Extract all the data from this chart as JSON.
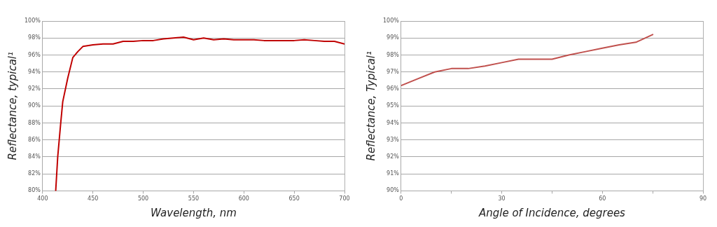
{
  "chart_data": [
    {
      "type": "line",
      "xlabel": "Wavelength, nm",
      "ylabel": "Reflectance, typical¹",
      "grid": "y",
      "marker": "none",
      "line_style": "solid",
      "xlim": [
        400,
        700
      ],
      "xticks": [
        400,
        450,
        500,
        550,
        600,
        650,
        700
      ],
      "ylim": [
        80,
        100
      ],
      "yticks": [
        {
          "value": 80,
          "label": "80%"
        },
        {
          "value": 82,
          "label": "82%"
        },
        {
          "value": 84,
          "label": "84%"
        },
        {
          "value": 86,
          "label": "86%"
        },
        {
          "value": 88,
          "label": "88%"
        },
        {
          "value": 90,
          "label": "90%"
        },
        {
          "value": 92,
          "label": "92%"
        },
        {
          "value": 94,
          "label": "94%"
        },
        {
          "value": 96,
          "label": "96%"
        },
        {
          "value": 98,
          "label": "98%"
        },
        {
          "value": 100,
          "label": "100%"
        }
      ],
      "series": [
        {
          "color": "#c00000",
          "x": [
            413,
            415,
            418,
            420,
            425,
            430,
            435,
            440,
            450,
            460,
            470,
            480,
            490,
            500,
            510,
            520,
            530,
            540,
            550,
            560,
            570,
            580,
            590,
            600,
            610,
            620,
            630,
            640,
            650,
            660,
            670,
            680,
            690,
            700
          ],
          "values": [
            80,
            84,
            88,
            90.5,
            93.3,
            95.7,
            96.4,
            97,
            97.2,
            97.3,
            97.3,
            97.6,
            97.6,
            97.7,
            97.7,
            97.9,
            98,
            98.1,
            97.8,
            98,
            97.8,
            97.9,
            97.8,
            97.8,
            97.8,
            97.7,
            97.7,
            97.7,
            97.7,
            97.8,
            97.7,
            97.6,
            97.6,
            97.3
          ]
        }
      ]
    },
    {
      "type": "line",
      "xlabel": "Angle of Incidence, degrees",
      "ylabel": "Reflectance, Typical¹",
      "grid": "y",
      "marker": "none",
      "line_style": "solid",
      "xlim": [
        0,
        90
      ],
      "xticks": [
        0,
        {
          "value": 15,
          "label": null
        },
        30,
        {
          "value": 45,
          "label": null
        },
        60,
        {
          "value": 75,
          "label": null
        },
        90
      ],
      "ylim": [
        90,
        100
      ],
      "yticks": [
        {
          "value": 90,
          "label": "90%"
        },
        {
          "value": 91,
          "label": "91%"
        },
        {
          "value": 92,
          "label": "92%"
        },
        {
          "value": 93,
          "label": "93%"
        },
        {
          "value": 94,
          "label": "94%"
        },
        {
          "value": 95,
          "label": "95%"
        },
        {
          "value": 96,
          "label": "96%"
        },
        {
          "value": 97,
          "label": "97%"
        },
        {
          "value": 98,
          "label": "98%"
        },
        {
          "value": 99,
          "label": "99%"
        },
        {
          "value": 100,
          "label": "100%"
        }
      ],
      "series": [
        {
          "color": "#c0504d",
          "x": [
            0,
            5,
            10,
            15,
            20,
            25,
            30,
            35,
            45,
            50,
            55,
            60,
            65,
            70,
            75
          ],
          "values": [
            96.2,
            96.6,
            97,
            97.2,
            97.2,
            97.35,
            97.55,
            97.75,
            97.75,
            98,
            98.2,
            98.4,
            98.6,
            98.75,
            99.2
          ]
        }
      ]
    }
  ]
}
